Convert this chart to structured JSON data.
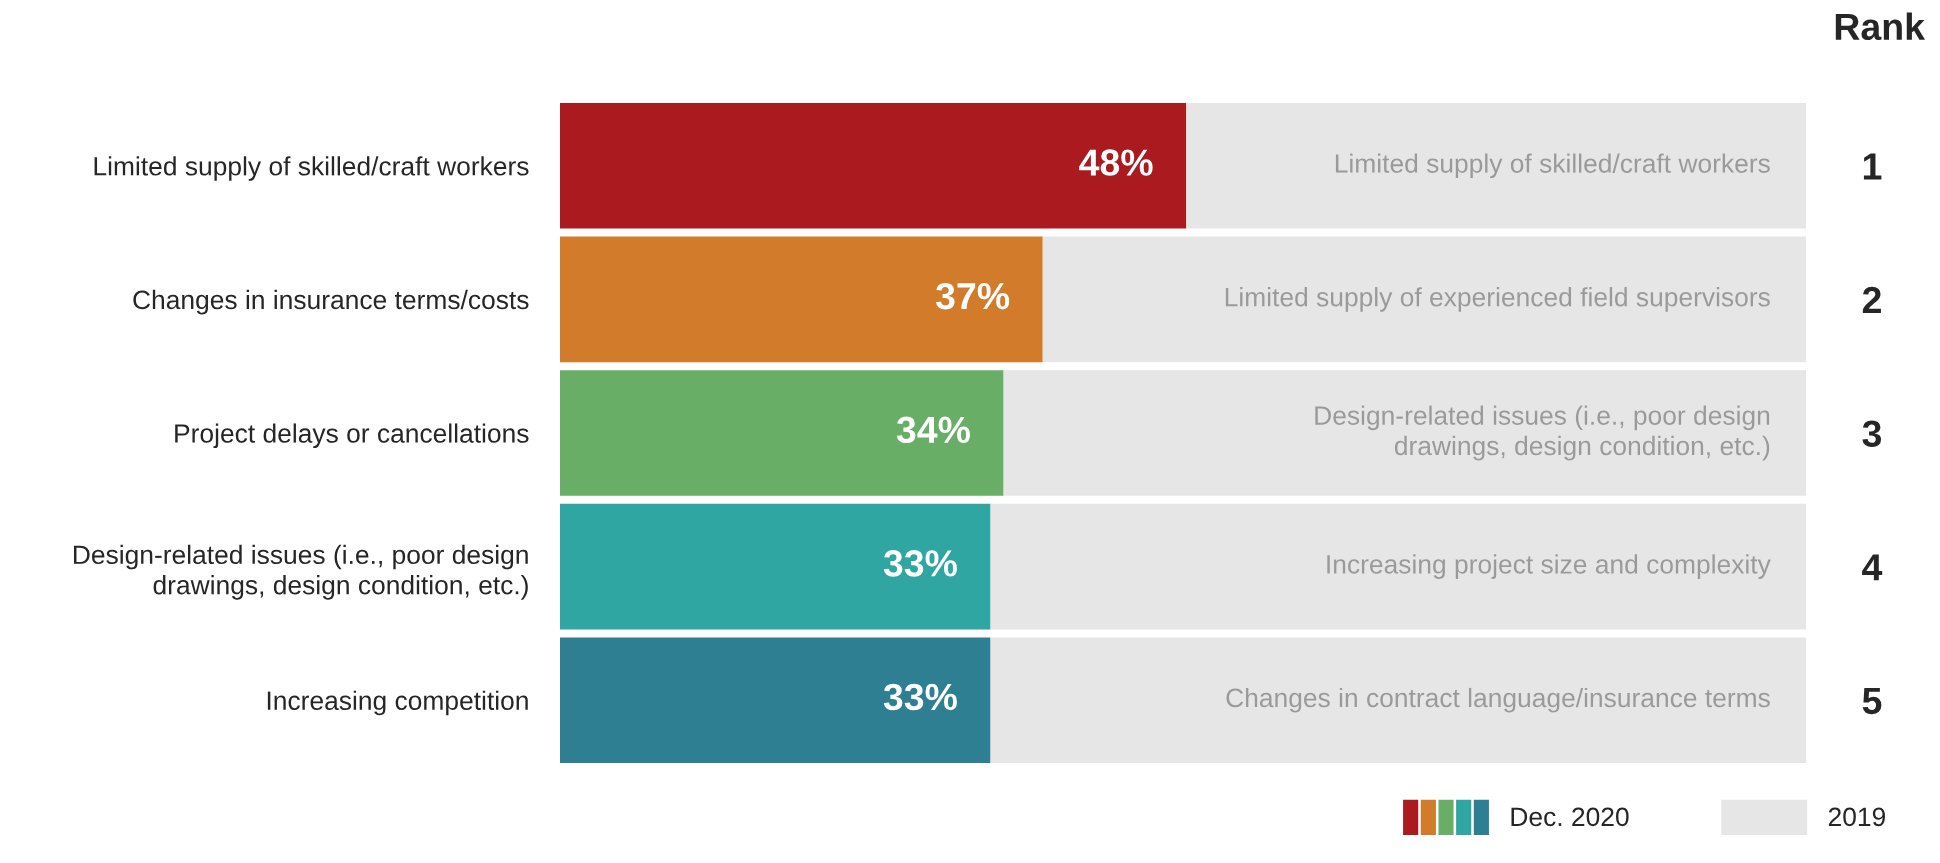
{
  "chart_data": {
    "type": "bar",
    "orientation": "horizontal",
    "categories": [
      "Limited supply of skilled/craft workers",
      "Changes in insurance terms/costs",
      "Project delays or cancellations",
      "Design-related issues (i.e., poor design\ndrawings, design condition, etc.)",
      "Increasing competition"
    ],
    "y2label": "Rank",
    "y2_categories": [
      "1",
      "2",
      "3",
      "4",
      "5"
    ],
    "series": [
      {
        "name": "Dec. 2020",
        "colors": [
          "#ab1a1f",
          "#d27b2a",
          "#68ae66",
          "#30a6a2",
          "#2e7f92"
        ],
        "values": [
          48,
          37,
          34,
          33,
          33
        ],
        "value_labels": [
          "48%",
          "37%",
          "34%",
          "33%",
          "33%"
        ]
      },
      {
        "name": "2019",
        "color": "#e6e6e6",
        "values": [
          47.5,
          58.5,
          61.5,
          62.5,
          62.5
        ],
        "value_labels": [
          "Limited supply of skilled/craft workers",
          "Limited supply of experienced field supervisors",
          "Design-related issues (i.e., poor design\ndrawings, design condition, etc.)",
          "Increasing project size and complexity",
          "Changes in contract language/insurance terms"
        ]
      }
    ],
    "stacked": true,
    "xlim": [
      0,
      95.5
    ],
    "tick_labels": "y",
    "legend": "bottom right"
  }
}
